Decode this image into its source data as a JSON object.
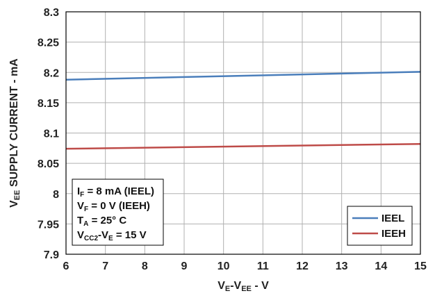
{
  "chart_data": {
    "type": "line",
    "xlabel": "VE-VEE - V",
    "xlabel_parts": {
      "a": "V",
      "a_sub": "E",
      "b": "-V",
      "b_sub": "EE",
      "c": " - V"
    },
    "ylabel": "VEE SUPPLY CURRENT - mA",
    "ylabel_parts": {
      "a": "V",
      "a_sub": "EE",
      "b": " SUPPLY CURRENT - mA"
    },
    "xlim": [
      6,
      15
    ],
    "ylim": [
      7.9,
      8.3
    ],
    "x_ticks": [
      6,
      7,
      8,
      9,
      10,
      11,
      12,
      13,
      14,
      15
    ],
    "y_ticks": [
      7.9,
      7.95,
      8,
      8.05,
      8.1,
      8.15,
      8.2,
      8.25,
      8.3
    ],
    "x_tick_labels": [
      "6",
      "7",
      "8",
      "9",
      "10",
      "11",
      "12",
      "13",
      "14",
      "15"
    ],
    "y_tick_labels": [
      "7.9",
      "7.95",
      "8",
      "8.05",
      "8.1",
      "8.15",
      "8.2",
      "8.25",
      "8.3"
    ],
    "grid": true,
    "legend_position": "bottom-right",
    "series": [
      {
        "name": "IEEL",
        "color": "#4a7ebb",
        "x": [
          6,
          15
        ],
        "y": [
          8.188,
          8.201
        ]
      },
      {
        "name": "IEEH",
        "color": "#be4b48",
        "x": [
          6,
          15
        ],
        "y": [
          8.074,
          8.082
        ]
      }
    ],
    "annotation": {
      "lines": [
        {
          "a": "I",
          "a_sub": "F",
          "b": " = 8 mA (IEEL)"
        },
        {
          "a": "V",
          "a_sub": "F",
          "b": " = 0 V (IEEH)"
        },
        {
          "a": "T",
          "a_sub": "A",
          "b": " = 25° C"
        },
        {
          "a": "V",
          "a_sub": "CC2",
          "b": "-V",
          "b_sub": "E",
          "c": " = 15 V"
        }
      ]
    }
  }
}
